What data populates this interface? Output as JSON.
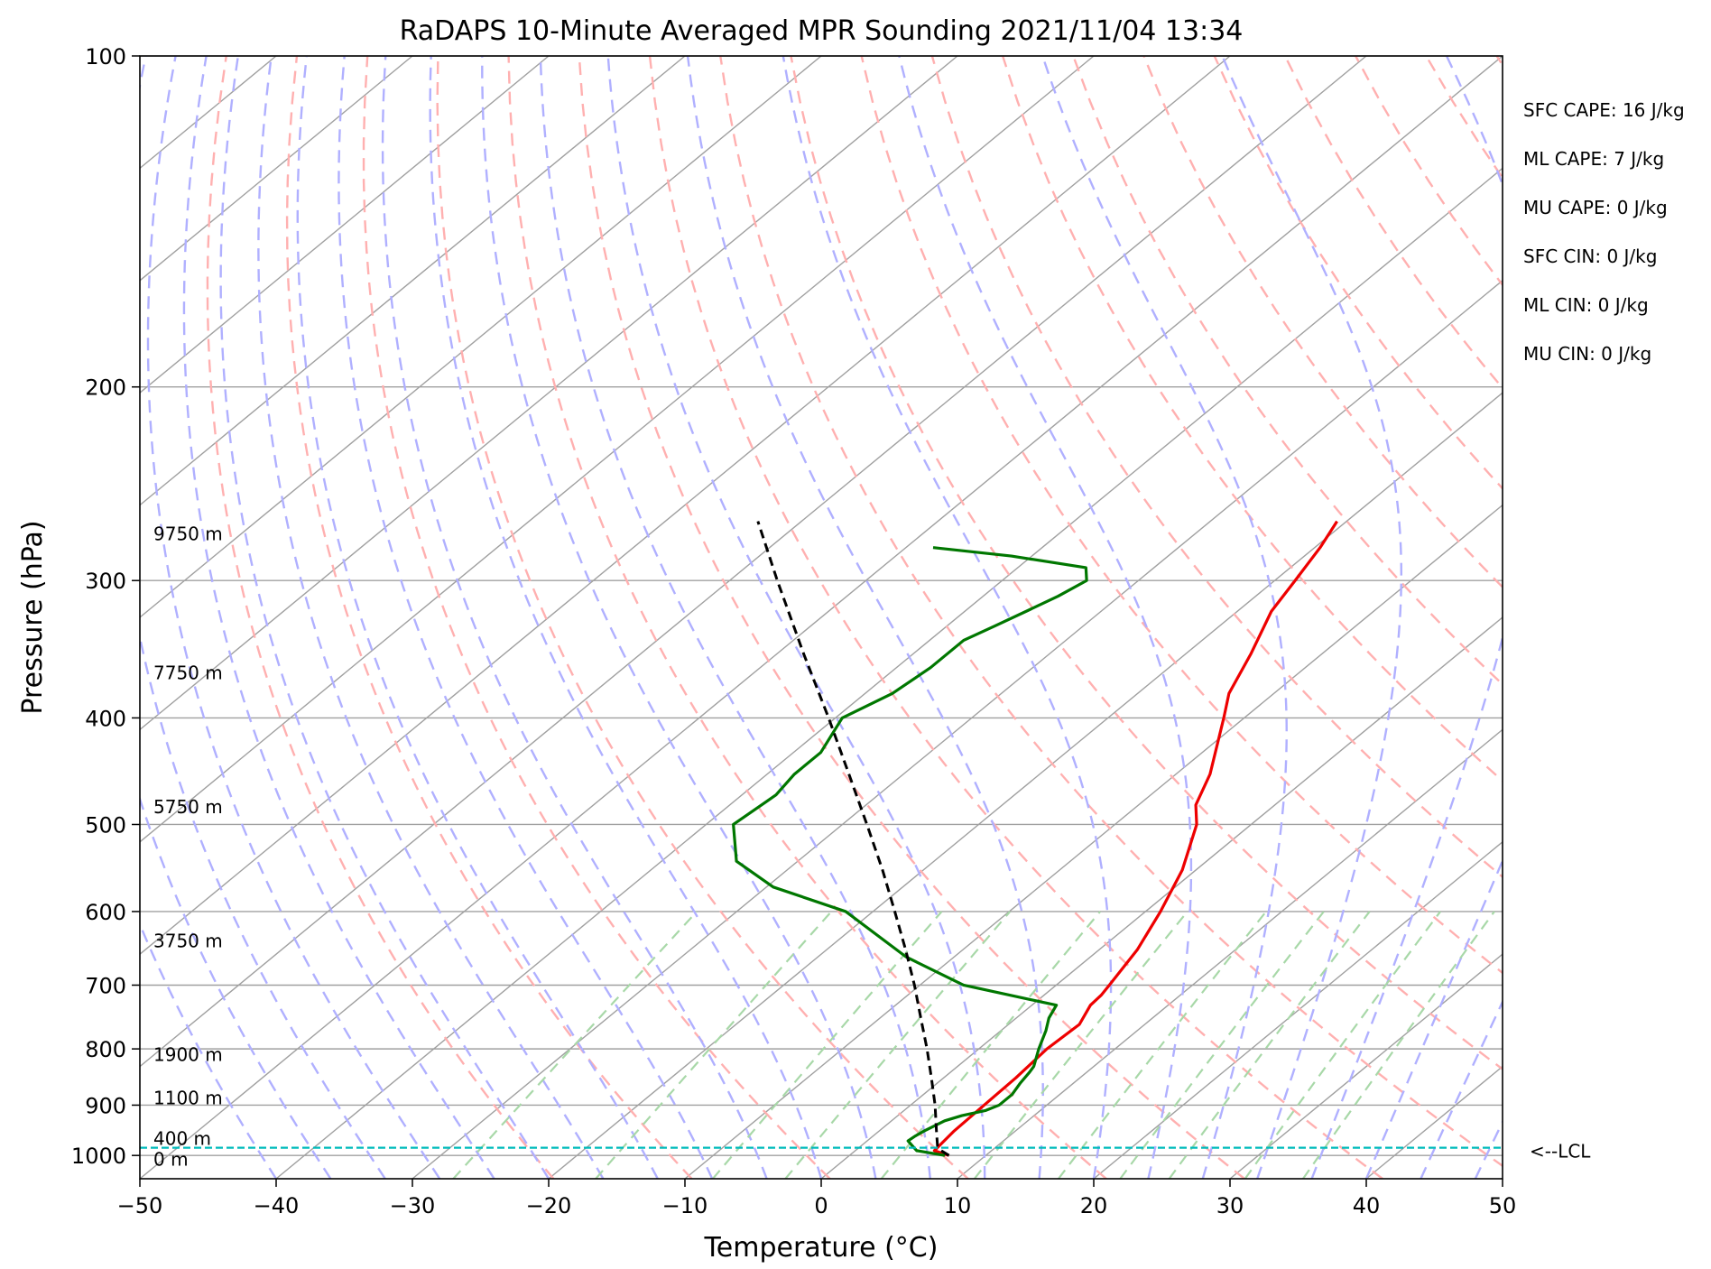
{
  "chart_data": {
    "type": "line",
    "title": "RaDAPS 10-Minute Averaged MPR Sounding 2021/11/04 13:34",
    "xlabel": "Temperature (°C)",
    "ylabel": "Pressure (hPa)",
    "xlim": [
      -50,
      50
    ],
    "ylim": [
      1050,
      100
    ],
    "y_scale": "log",
    "skew": "skew-T log-P",
    "x_ticks": [
      "−50",
      "−40",
      "−30",
      "−20",
      "−10",
      "0",
      "10",
      "20",
      "30",
      "40",
      "50"
    ],
    "x_tick_values": [
      -50,
      -40,
      -30,
      -20,
      -10,
      0,
      10,
      20,
      30,
      40,
      50
    ],
    "y_ticks": [
      100,
      200,
      300,
      400,
      500,
      600,
      700,
      800,
      900,
      1000
    ],
    "grid": true,
    "colors": {
      "temperature": "#ee0000",
      "dewpoint": "#007700",
      "parcel": "#000000",
      "lcl": "#00bbbb",
      "isotherm": "#a0a0a0",
      "dry_adiabat": "#ffb0b0",
      "moist_adiabat": "#b0b0ff",
      "mixing_ratio": "#a8d8a8"
    },
    "series": [
      {
        "key": "temperature",
        "points": [
          [
            1000,
            7.3
          ],
          [
            990,
            5.8
          ],
          [
            950,
            5.5
          ],
          [
            900,
            5.4
          ],
          [
            850,
            5.3
          ],
          [
            800,
            5.0
          ],
          [
            760,
            5.2
          ],
          [
            730,
            4.3
          ],
          [
            715,
            4.2
          ],
          [
            700,
            3.9
          ],
          [
            650,
            2.8
          ],
          [
            600,
            1.1
          ],
          [
            550,
            -1.0
          ],
          [
            500,
            -4.0
          ],
          [
            480,
            -5.8
          ],
          [
            450,
            -7.5
          ],
          [
            400,
            -11.5
          ],
          [
            380,
            -13.3
          ],
          [
            350,
            -15.2
          ],
          [
            320,
            -17.5
          ],
          [
            300,
            -18.5
          ],
          [
            280,
            -19.6
          ],
          [
            265,
            -20.7
          ]
        ]
      },
      {
        "key": "dewpoint",
        "points": [
          [
            1000,
            7.0
          ],
          [
            990,
            4.5
          ],
          [
            970,
            3.0
          ],
          [
            960,
            3.1
          ],
          [
            950,
            3.3
          ],
          [
            930,
            3.9
          ],
          [
            920,
            4.7
          ],
          [
            910,
            6.0
          ],
          [
            900,
            6.5
          ],
          [
            880,
            6.5
          ],
          [
            860,
            6.1
          ],
          [
            840,
            5.8
          ],
          [
            830,
            5.6
          ],
          [
            800,
            4.4
          ],
          [
            770,
            3.3
          ],
          [
            750,
            2.4
          ],
          [
            730,
            1.8
          ],
          [
            700,
            -6.8
          ],
          [
            660,
            -13.5
          ],
          [
            600,
            -22.0
          ],
          [
            570,
            -29.5
          ],
          [
            540,
            -34.5
          ],
          [
            500,
            -38.0
          ],
          [
            470,
            -37.5
          ],
          [
            450,
            -38.0
          ],
          [
            430,
            -38.0
          ],
          [
            400,
            -39.5
          ],
          [
            380,
            -38.0
          ],
          [
            360,
            -37.5
          ],
          [
            340,
            -37.5
          ],
          [
            330,
            -36.5
          ],
          [
            320,
            -35.5
          ],
          [
            310,
            -34.5
          ],
          [
            300,
            -33.8
          ],
          [
            292,
            -35.0
          ],
          [
            285,
            -41.5
          ],
          [
            280,
            -48.0
          ]
        ]
      },
      {
        "key": "parcel",
        "dashed": true,
        "points": [
          [
            1000,
            7.3
          ],
          [
            990,
            6.3
          ],
          [
            980,
            5.6
          ],
          [
            950,
            4.2
          ],
          [
            900,
            1.8
          ],
          [
            850,
            -0.9
          ],
          [
            800,
            -3.8
          ],
          [
            750,
            -7.0
          ],
          [
            700,
            -10.4
          ],
          [
            650,
            -14.2
          ],
          [
            600,
            -18.4
          ],
          [
            550,
            -23.0
          ],
          [
            500,
            -28.2
          ],
          [
            450,
            -34.0
          ],
          [
            400,
            -40.5
          ],
          [
            350,
            -48.0
          ],
          [
            300,
            -56.5
          ],
          [
            265,
            -63.2
          ]
        ]
      }
    ],
    "lcl_pressure": 984,
    "lcl_label": "<--LCL",
    "height_labels": [
      {
        "text": "9750 m",
        "p": 272
      },
      {
        "text": "7750 m",
        "p": 364
      },
      {
        "text": "5750 m",
        "p": 482
      },
      {
        "text": "3750 m",
        "p": 638
      },
      {
        "text": "1900 m",
        "p": 810
      },
      {
        "text": "1100 m",
        "p": 887
      },
      {
        "text": "400 m",
        "p": 965
      },
      {
        "text": "0 m",
        "p": 1008
      }
    ],
    "annotations": [
      "SFC CAPE: 16 J/kg",
      "ML CAPE: 7 J/kg",
      "MU CAPE: 0 J/kg",
      "SFC CIN: 0 J/kg",
      "ML CIN: 0 J/kg",
      "MU CIN: 0 J/kg"
    ]
  }
}
